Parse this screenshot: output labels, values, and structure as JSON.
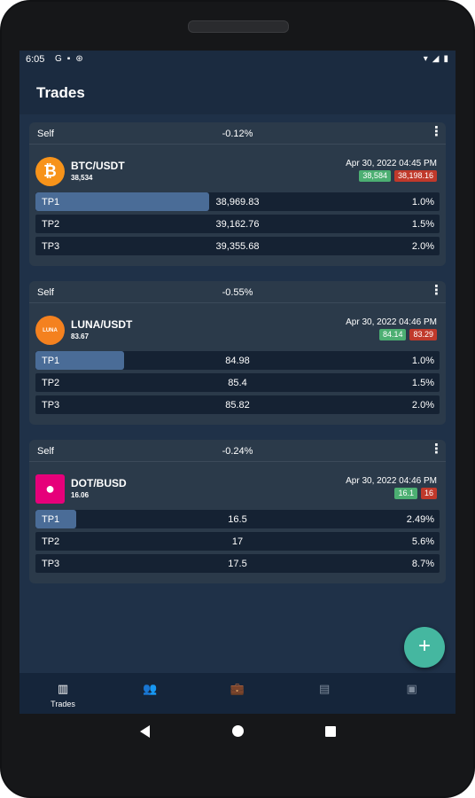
{
  "status": {
    "time": "6:05",
    "left_icons": [
      "G",
      "▪",
      "⊛"
    ],
    "right_icons": [
      "▾",
      "◢",
      "▮"
    ]
  },
  "appbar": {
    "title": "Trades"
  },
  "trades": [
    {
      "label": "Self",
      "change": "-0.12%",
      "menu": "⋮",
      "pair": "BTC/USDT",
      "price": "38,534",
      "date": "Apr 30, 2022 04:45 PM",
      "badge_green": "38,584",
      "badge_red": "38,198.16",
      "logo_color": "#f7931a",
      "logo_text": "₿",
      "targets": [
        {
          "label": "TP1",
          "price": "38,969.83",
          "pct": "1.0%",
          "progress": 0.43
        },
        {
          "label": "TP2",
          "price": "39,162.76",
          "pct": "1.5%",
          "progress": 0
        },
        {
          "label": "TP3",
          "price": "39,355.68",
          "pct": "2.0%",
          "progress": 0
        }
      ]
    },
    {
      "label": "Self",
      "change": "-0.55%",
      "menu": "⋮",
      "pair": "LUNA/USDT",
      "price": "83.67",
      "date": "Apr 30, 2022 04:46 PM",
      "badge_green": "84.14",
      "badge_red": "83.29",
      "logo_color": "#f4811f",
      "logo_text": "LUNA",
      "targets": [
        {
          "label": "TP1",
          "price": "84.98",
          "pct": "1.0%",
          "progress": 0.22
        },
        {
          "label": "TP2",
          "price": "85.4",
          "pct": "1.5%",
          "progress": 0
        },
        {
          "label": "TP3",
          "price": "85.82",
          "pct": "2.0%",
          "progress": 0
        }
      ]
    },
    {
      "label": "Self",
      "change": "-0.24%",
      "menu": "⋮",
      "pair": "DOT/BUSD",
      "price": "16.06",
      "date": "Apr 30, 2022 04:46 PM",
      "badge_green": "16.1",
      "badge_red": "16",
      "logo_color": "#e6007a",
      "logo_text": "●",
      "targets": [
        {
          "label": "TP1",
          "price": "16.5",
          "pct": "2.49%",
          "progress": 0.1
        },
        {
          "label": "TP2",
          "price": "17",
          "pct": "5.6%",
          "progress": 0
        },
        {
          "label": "TP3",
          "price": "17.5",
          "pct": "8.7%",
          "progress": 0
        }
      ]
    }
  ],
  "fab": {
    "icon": "+"
  },
  "bottom_nav": [
    {
      "icon": "bar-chart-icon",
      "glyph": "▥",
      "label": "Trades",
      "active": true
    },
    {
      "icon": "group-icon",
      "glyph": "👥",
      "label": "",
      "active": false
    },
    {
      "icon": "briefcase-icon",
      "glyph": "💼",
      "label": "",
      "active": false
    },
    {
      "icon": "chat-icon",
      "glyph": "▤",
      "label": "",
      "active": false
    },
    {
      "icon": "contact-icon",
      "glyph": "▣",
      "label": "",
      "active": false
    }
  ]
}
